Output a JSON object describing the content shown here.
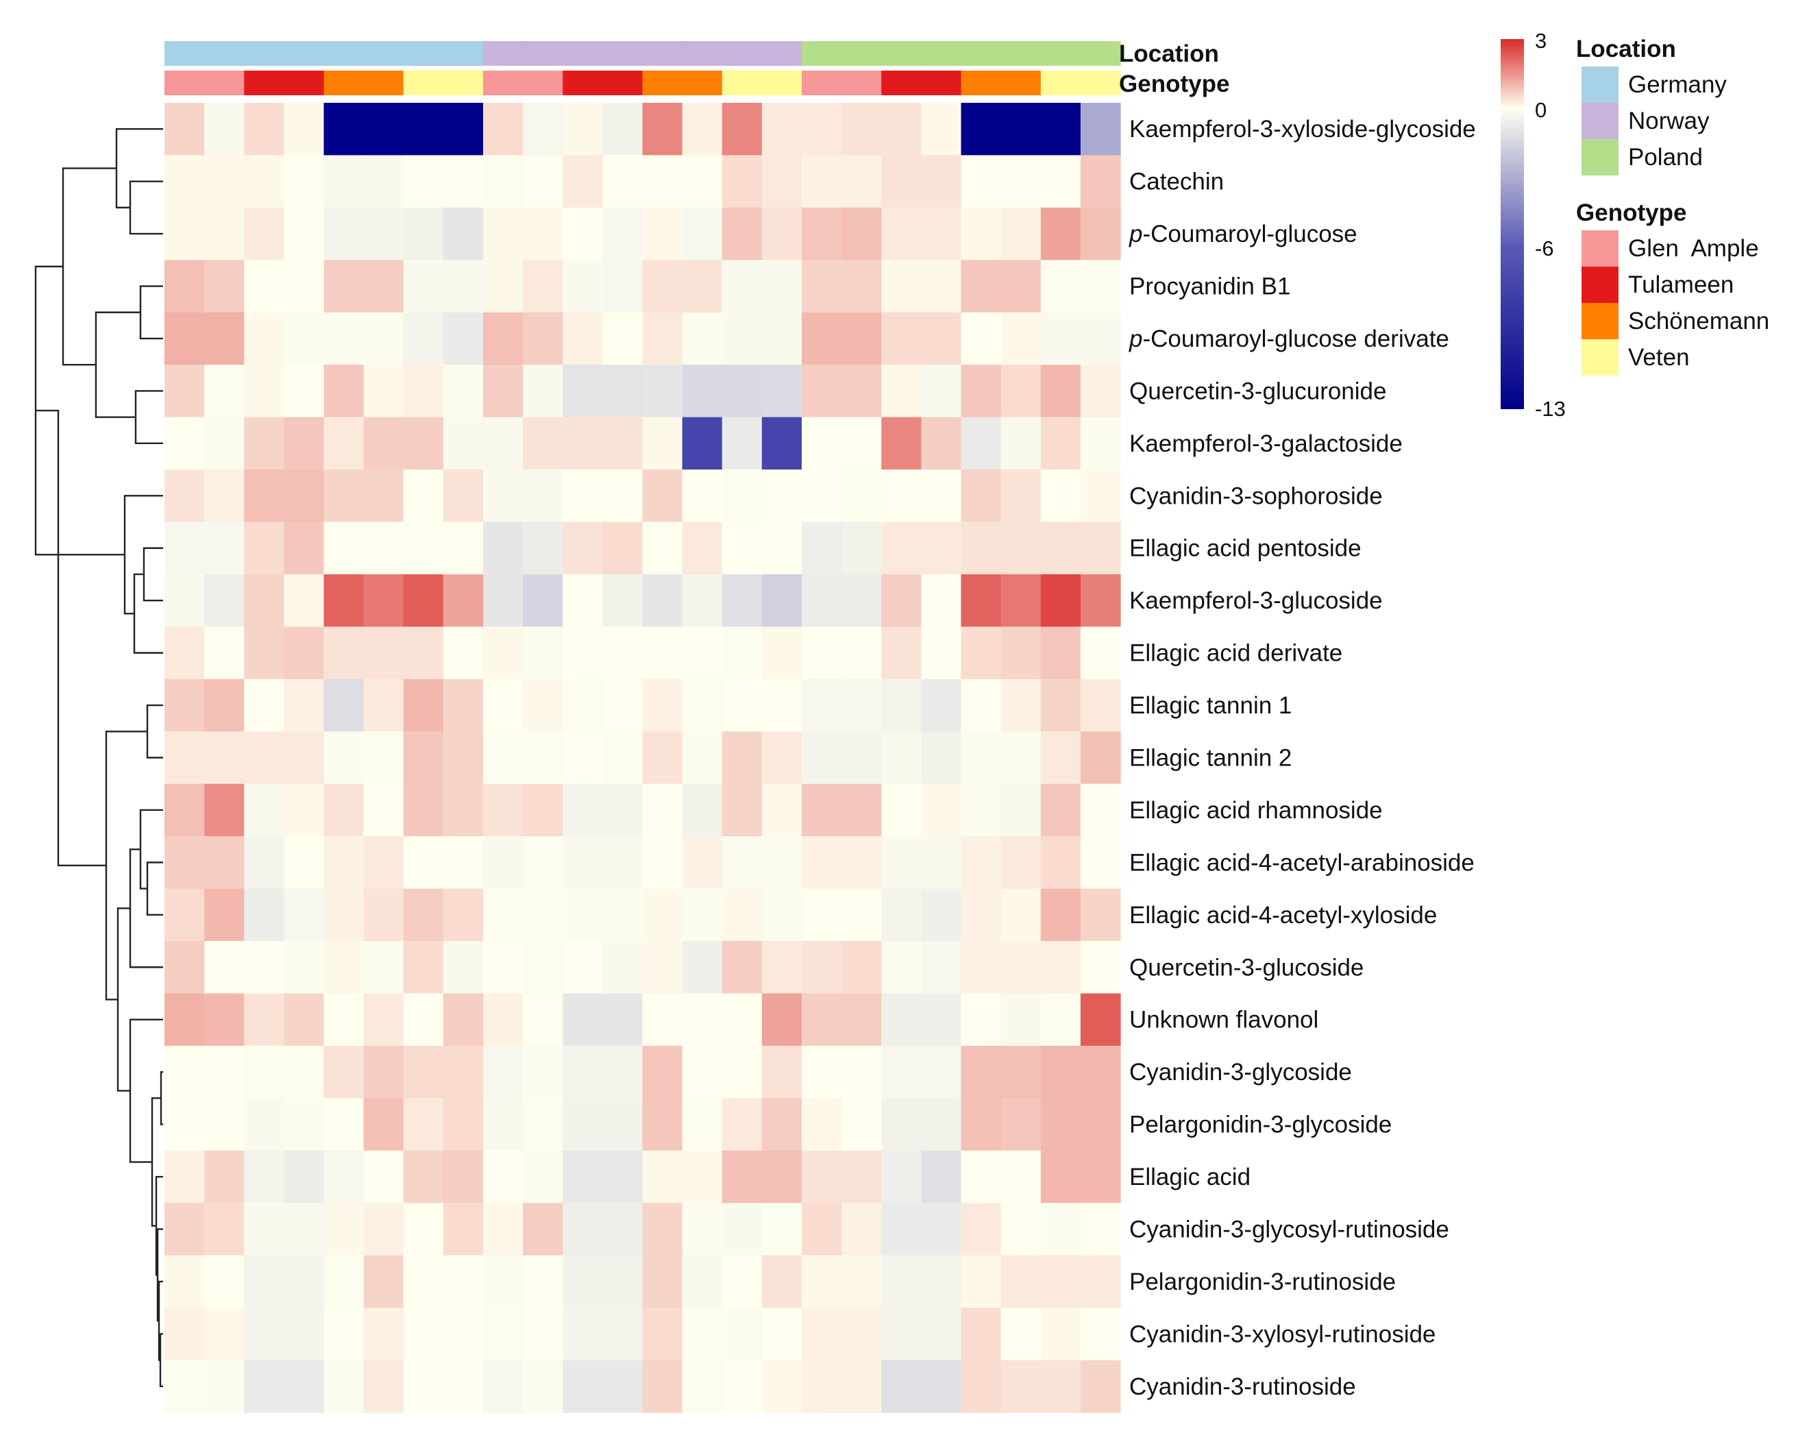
{
  "chart_data": {
    "type": "heatmap",
    "title": "",
    "annotation_rows": [
      {
        "name": "Location",
        "values": [
          "Germany",
          "Germany",
          "Germany",
          "Germany",
          "Germany",
          "Germany",
          "Germany",
          "Germany",
          "Norway",
          "Norway",
          "Norway",
          "Norway",
          "Norway",
          "Norway",
          "Norway",
          "Norway",
          "Poland",
          "Poland",
          "Poland",
          "Poland",
          "Poland",
          "Poland",
          "Poland",
          "Poland"
        ]
      },
      {
        "name": "Genotype",
        "values": [
          "Glen Ample",
          "Glen Ample",
          "Tulameen",
          "Tulameen",
          "Schönemann",
          "Schönemann",
          "Veten",
          "Veten",
          "Glen Ample",
          "Glen Ample",
          "Tulameen",
          "Tulameen",
          "Schönemann",
          "Schönemann",
          "Veten",
          "Veten",
          "Glen Ample",
          "Glen Ample",
          "Tulameen",
          "Tulameen",
          "Schönemann",
          "Schönemann",
          "Veten",
          "Veten"
        ]
      }
    ],
    "rows": [
      "Kaempferol-3-xyloside-glycoside",
      "Catechin",
      "p-Coumaroyl-glucose",
      "Procyanidin B1",
      "p-Coumaroyl-glucose derivate",
      "Quercetin-3-glucuronide",
      "Kaempferol-3-galactoside",
      "Cyanidin-3-sophoroside",
      "Ellagic acid pentoside",
      "Kaempferol-3-glucoside",
      "Ellagic acid derivate",
      "Ellagic tannin 1",
      "Ellagic tannin 2",
      "Ellagic acid rhamnoside",
      "Ellagic acid-4-acetyl-arabinoside",
      "Ellagic acid-4-acetyl-xyloside",
      "Quercetin-3-glucoside",
      "Unknown flavonol",
      "Cyanidin-3-glycoside",
      "Pelargonidin-3-glycoside",
      "Ellagic acid",
      "Cyanidin-3-glycosyl-rutinoside",
      "Pelargonidin-3-rutinoside",
      "Cyanidin-3-xylosyl-rutinoside",
      "Cyanidin-3-rutinoside"
    ],
    "values": [
      [
        0.6,
        -0.3,
        0.5,
        0.1,
        -13,
        -13,
        -13,
        -13,
        0.5,
        -0.4,
        0.1,
        -0.6,
        1.7,
        0.2,
        1.7,
        0.3,
        0.3,
        0.4,
        0.4,
        0.1,
        -13,
        -13,
        -13,
        -4
      ],
      [
        0.1,
        0.1,
        0.1,
        0,
        -0.3,
        -0.3,
        0,
        0,
        -0.1,
        0,
        0.3,
        0,
        0,
        0,
        0.5,
        0.3,
        0.2,
        0.2,
        0.4,
        0.4,
        0,
        0,
        0,
        0.8
      ],
      [
        0.1,
        0.1,
        0.3,
        0,
        -0.5,
        -0.5,
        -0.6,
        -1.2,
        0.1,
        0.1,
        0,
        -0.4,
        0.1,
        -0.4,
        0.8,
        0.4,
        0.8,
        0.9,
        0.3,
        0.3,
        0.1,
        0.2,
        1.3,
        0.9
      ],
      [
        0.9,
        0.7,
        0,
        0,
        0.7,
        0.7,
        -0.3,
        -0.3,
        0.1,
        0.3,
        -0.3,
        -0.4,
        0.4,
        0.4,
        -0.3,
        -0.3,
        0.6,
        0.6,
        0.1,
        0.1,
        0.8,
        0.8,
        -0.1,
        -0.1
      ],
      [
        1.1,
        1.1,
        0.1,
        -0.2,
        -0.2,
        -0.2,
        -0.5,
        -1,
        0.9,
        0.7,
        0.2,
        0,
        0.3,
        -0.2,
        -0.3,
        -0.3,
        1,
        1,
        0.5,
        0.5,
        0,
        0.1,
        -0.3,
        -0.3
      ],
      [
        0.6,
        -0.1,
        0.1,
        0,
        0.8,
        0.1,
        0.2,
        -0.2,
        0.7,
        -0.3,
        -1.3,
        -1.3,
        -1.2,
        -1.8,
        -1.8,
        -1.7,
        0.7,
        0.7,
        0.1,
        -0.3,
        0.8,
        0.5,
        1,
        0.2
      ],
      [
        0,
        -0.2,
        0.6,
        0.8,
        0.3,
        0.7,
        0.7,
        -0.3,
        -0.3,
        0.4,
        0.4,
        0.4,
        0.1,
        -9,
        -1,
        -9,
        0,
        0,
        1.7,
        0.7,
        -1,
        -0.3,
        0.5,
        -0.2
      ],
      [
        0.4,
        0.2,
        0.9,
        0.9,
        0.6,
        0.6,
        0,
        0.4,
        -0.3,
        -0.3,
        0,
        0,
        0.6,
        0,
        -0.1,
        0,
        0,
        -0.1,
        0,
        0,
        0.6,
        0.4,
        0,
        0.1
      ],
      [
        -0.4,
        -0.4,
        0.5,
        0.8,
        0,
        0,
        0,
        0,
        -1.2,
        -0.9,
        0.4,
        0.5,
        0,
        0.3,
        0,
        0,
        -0.8,
        -0.6,
        0.3,
        0.3,
        0.4,
        0.4,
        0.4,
        0.4
      ],
      [
        -0.3,
        -0.8,
        0.6,
        0.1,
        2.2,
        1.9,
        2.3,
        1.3,
        -1.2,
        -2,
        0,
        -0.6,
        -1.2,
        -0.5,
        -1.5,
        -2.2,
        -0.9,
        -0.9,
        0.7,
        0,
        2.2,
        1.9,
        2.6,
        1.8
      ],
      [
        0.3,
        0,
        0.6,
        0.7,
        0.4,
        0.4,
        0.4,
        0,
        0.1,
        -0.2,
        0,
        0,
        0,
        0,
        -0.1,
        0.1,
        0,
        0,
        0.4,
        0,
        0.5,
        0.6,
        0.8,
        0
      ],
      [
        0.7,
        0.9,
        0,
        0.2,
        -1.6,
        0.3,
        1,
        0.6,
        0,
        0.1,
        -0.1,
        0,
        0.2,
        -0.1,
        0,
        0,
        -0.4,
        -0.4,
        -0.5,
        -1,
        0,
        0.2,
        0.6,
        0.3
      ],
      [
        0.3,
        0.3,
        0.3,
        0.3,
        -0.2,
        -0.1,
        0.8,
        0.6,
        -0.1,
        -0.1,
        0,
        -0.1,
        0.4,
        -0.2,
        0.6,
        0.3,
        -0.5,
        -0.5,
        -0.3,
        -0.6,
        -0.2,
        -0.2,
        0.3,
        0.9
      ],
      [
        0.9,
        1.6,
        -0.3,
        0.1,
        0.4,
        0,
        0.8,
        0.6,
        0.4,
        0.5,
        -0.5,
        -0.5,
        0,
        -0.6,
        0.6,
        0.1,
        0.8,
        0.8,
        0,
        0.1,
        -0.2,
        -0.3,
        0.8,
        0
      ],
      [
        0.7,
        0.7,
        -0.5,
        0,
        0.2,
        0.3,
        0,
        0,
        -0.3,
        -0.1,
        -0.3,
        -0.3,
        0,
        0.2,
        -0.2,
        -0.2,
        0.2,
        0.2,
        -0.3,
        -0.3,
        0.2,
        0.3,
        0.5,
        0
      ],
      [
        0.5,
        1,
        -0.9,
        -0.4,
        0.2,
        0.4,
        0.7,
        0.5,
        -0.1,
        -0.1,
        -0.2,
        -0.2,
        0.1,
        -0.2,
        0.1,
        -0.2,
        0,
        0,
        -0.5,
        -0.7,
        0.2,
        0.1,
        1,
        0.6
      ],
      [
        0.7,
        0,
        0,
        -0.2,
        0.1,
        -0.2,
        0.5,
        -0.3,
        0,
        -0.1,
        0,
        -0.3,
        0.1,
        -0.7,
        0.7,
        0.3,
        0.4,
        0.5,
        -0.2,
        -0.4,
        0.2,
        0.2,
        0.2,
        0
      ],
      [
        1.1,
        1,
        0.4,
        0.6,
        0,
        0.3,
        0,
        0.7,
        0.2,
        0,
        -1.2,
        -1.2,
        0,
        0,
        0,
        1.3,
        0.7,
        0.7,
        -0.7,
        -0.7,
        0,
        -0.3,
        -0.1,
        2.3
      ],
      [
        0,
        0,
        -0.1,
        -0.1,
        0.4,
        0.7,
        0.5,
        0.5,
        -0.4,
        -0.2,
        -0.5,
        -0.5,
        0.8,
        0,
        0,
        0.4,
        0,
        0,
        -0.4,
        -0.4,
        0.9,
        0.9,
        1,
        1
      ],
      [
        0,
        0,
        -0.3,
        -0.2,
        0,
        0.9,
        0.3,
        0.5,
        -0.3,
        -0.1,
        -0.6,
        -0.6,
        0.8,
        -0.1,
        0.3,
        0.7,
        0.1,
        0,
        -0.6,
        -0.6,
        0.9,
        0.8,
        1,
        1
      ],
      [
        0.2,
        0.6,
        -0.5,
        -0.9,
        -0.4,
        0,
        0.6,
        0.7,
        0,
        -0.2,
        -1.1,
        -1.1,
        0.1,
        0.1,
        0.9,
        0.9,
        0.4,
        0.4,
        -0.8,
        -1.4,
        0,
        0,
        1,
        1
      ],
      [
        0.6,
        0.5,
        -0.3,
        -0.3,
        0.1,
        0.2,
        0,
        0.5,
        0.1,
        0.7,
        -0.8,
        -0.8,
        0.6,
        -0.2,
        -0.3,
        -0.1,
        0.5,
        0.2,
        -1,
        -1,
        0.3,
        0,
        -0.2,
        0
      ],
      [
        0.1,
        0,
        -0.5,
        -0.5,
        -0.1,
        0.6,
        0,
        0,
        -0.2,
        0,
        -0.6,
        -0.6,
        0.6,
        -0.3,
        0,
        0.4,
        0.1,
        0.1,
        -0.5,
        -0.5,
        0.1,
        0.3,
        0.3,
        0.3
      ],
      [
        0.2,
        0.1,
        -0.5,
        -0.5,
        0,
        0.2,
        0,
        0,
        -0.1,
        0,
        -0.5,
        -0.5,
        0.5,
        -0.1,
        -0.2,
        0,
        0.2,
        0.2,
        -0.5,
        -0.5,
        0.5,
        0,
        0.1,
        0
      ],
      [
        -0.1,
        -0.2,
        -1,
        -1,
        -0.2,
        0.3,
        0,
        0,
        -0.4,
        -0.2,
        -1.1,
        -1.1,
        0.6,
        -0.1,
        0,
        0.1,
        0.2,
        0.2,
        -1.5,
        -1.5,
        0.5,
        0.4,
        0.4,
        0.6
      ]
    ],
    "color_scale": {
      "min": -13,
      "mid": 0,
      "max": 3,
      "low_color": "#00008B",
      "mid_color": "#FFFFF0",
      "high_color": "#D92A2A"
    },
    "colorbar_ticks": [
      "3",
      "0",
      "-6",
      "-13"
    ],
    "legend": {
      "location_title": "Location",
      "location_items": [
        {
          "label": "Germany",
          "color": "#A6D1E6"
        },
        {
          "label": "Norway",
          "color": "#C9B3DB"
        },
        {
          "label": "Poland",
          "color": "#B4DE8A"
        }
      ],
      "genotype_title": "Genotype",
      "genotype_items": [
        {
          "label": "Glen  Ample",
          "color": "#F79696"
        },
        {
          "label": "Tulameen",
          "color": "#E31A1C"
        },
        {
          "label": "Schönemann",
          "color": "#FF7F00"
        },
        {
          "label": "Veten",
          "color": "#FFFA96"
        }
      ]
    },
    "annotation_labels": {
      "location": "Location",
      "genotype": "Genotype"
    }
  }
}
